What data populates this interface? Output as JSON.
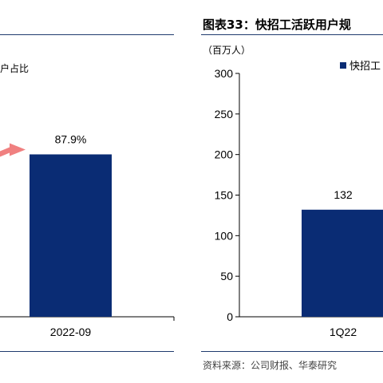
{
  "colors": {
    "bar": "#0a2c74",
    "rule": "#1f3a6e",
    "arrow": "#f08080"
  },
  "left_panel": {
    "title_fragment": "户占比",
    "chart_data": {
      "type": "bar",
      "categories": [
        "2022-09"
      ],
      "values": [
        87.9
      ],
      "data_labels": [
        "87.9%"
      ],
      "title": "",
      "xlabel": "",
      "ylabel": "",
      "annotation": "arrow pointing to 2022-09 bar"
    }
  },
  "right_panel": {
    "title": "图表33：快招工活跃用户规",
    "unit": "（百万人）",
    "source": "资料来源：公司财报、华泰研究",
    "chart_data": {
      "type": "bar",
      "categories": [
        "1Q22"
      ],
      "values": [
        132
      ],
      "data_labels": [
        "132"
      ],
      "series": [
        {
          "name": "快招工",
          "values": [
            132
          ]
        }
      ],
      "yticks": [
        "0",
        "50",
        "100",
        "150",
        "200",
        "250",
        "300"
      ],
      "ylim": [
        0,
        300
      ],
      "legend": "top-right",
      "grid": false
    }
  }
}
